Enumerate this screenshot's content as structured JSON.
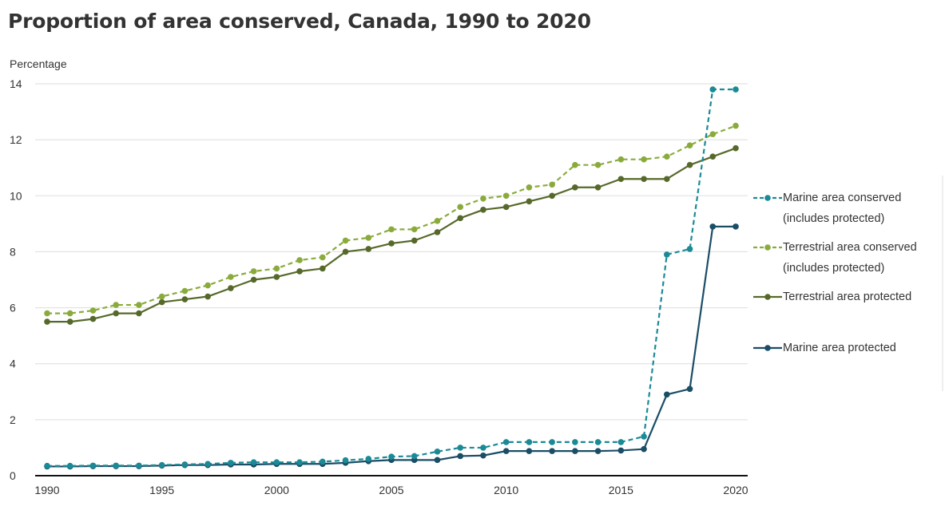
{
  "chart_data": {
    "type": "line",
    "title": "Proportion of area conserved, Canada, 1990 to 2020",
    "ylabel": "Percentage",
    "xlabel": "",
    "ylim": [
      0,
      14
    ],
    "xlim": [
      1990,
      2020
    ],
    "x": [
      1990,
      1991,
      1992,
      1993,
      1994,
      1995,
      1996,
      1997,
      1998,
      1999,
      2000,
      2001,
      2002,
      2003,
      2004,
      2005,
      2006,
      2007,
      2008,
      2009,
      2010,
      2011,
      2012,
      2013,
      2014,
      2015,
      2016,
      2017,
      2018,
      2019,
      2020
    ],
    "x_ticks": [
      "1990",
      "1995",
      "2000",
      "2005",
      "2010",
      "2015",
      "2020"
    ],
    "y_ticks": [
      "0",
      "2",
      "4",
      "6",
      "8",
      "10",
      "12",
      "14"
    ],
    "grid": "horizontal",
    "legend_position": "right",
    "series": [
      {
        "name": "Marine area conserved (includes protected)",
        "legend_lines": [
          "Marine area conserved",
          "(includes protected)"
        ],
        "color": "#1a8a96",
        "style": "dashed",
        "values": [
          0.35,
          0.35,
          0.36,
          0.36,
          0.36,
          0.38,
          0.4,
          0.42,
          0.46,
          0.48,
          0.48,
          0.48,
          0.5,
          0.55,
          0.6,
          0.68,
          0.7,
          0.86,
          1.0,
          1.0,
          1.2,
          1.2,
          1.2,
          1.2,
          1.2,
          1.2,
          1.4,
          7.9,
          8.1,
          13.8,
          13.8
        ]
      },
      {
        "name": "Terrestrial area conserved (includes protected)",
        "legend_lines": [
          "Terrestrial area conserved",
          "(includes protected)"
        ],
        "color": "#8aab3c",
        "style": "dashed",
        "values": [
          5.8,
          5.8,
          5.9,
          6.1,
          6.1,
          6.4,
          6.6,
          6.8,
          7.1,
          7.3,
          7.4,
          7.7,
          7.8,
          8.4,
          8.5,
          8.8,
          8.8,
          9.1,
          9.6,
          9.9,
          10.0,
          10.3,
          10.4,
          11.1,
          11.1,
          11.3,
          11.3,
          11.4,
          11.8,
          12.2,
          12.5
        ]
      },
      {
        "name": "Terrestrial area protected",
        "legend_lines": [
          "Terrestrial area protected"
        ],
        "color": "#56692a",
        "style": "solid",
        "values": [
          5.5,
          5.5,
          5.6,
          5.8,
          5.8,
          6.2,
          6.3,
          6.4,
          6.7,
          7.0,
          7.1,
          7.3,
          7.4,
          8.0,
          8.1,
          8.3,
          8.4,
          8.7,
          9.2,
          9.5,
          9.6,
          9.8,
          10.0,
          10.3,
          10.3,
          10.6,
          10.6,
          10.6,
          11.1,
          11.4,
          11.7
        ]
      },
      {
        "name": "Marine area protected",
        "legend_lines": [
          "Marine area protected"
        ],
        "color": "#1a4d66",
        "style": "solid",
        "values": [
          0.33,
          0.33,
          0.34,
          0.34,
          0.34,
          0.36,
          0.38,
          0.38,
          0.4,
          0.4,
          0.42,
          0.42,
          0.42,
          0.46,
          0.52,
          0.56,
          0.56,
          0.56,
          0.7,
          0.72,
          0.88,
          0.88,
          0.88,
          0.88,
          0.88,
          0.9,
          0.95,
          2.9,
          3.1,
          8.9,
          8.9
        ]
      }
    ]
  }
}
